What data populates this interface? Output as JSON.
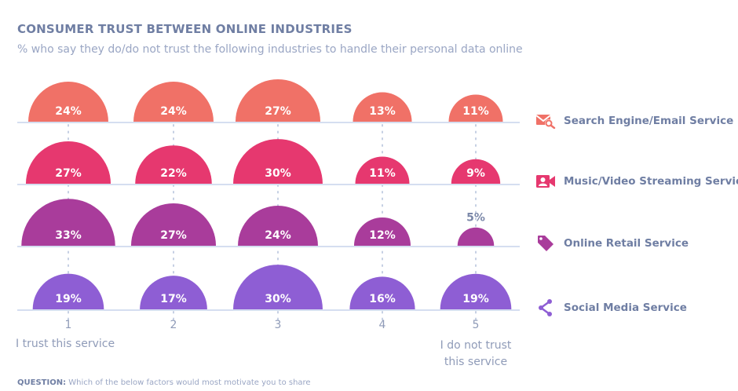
{
  "header": {
    "title": "CONSUMER TRUST BETWEEN ONLINE INDUSTRIES",
    "subtitle": "% who say they do/do not trust the following industries to handle their personal data online"
  },
  "footer": {
    "question_label": "QUESTION:",
    "question_text": "Which of the below factors would most motivate you to share"
  },
  "chart_data": {
    "type": "semicircle-bubble",
    "title": "CONSUMER TRUST BETWEEN ONLINE INDUSTRIES",
    "subtitle": "% who say they do/do not trust the following industries to handle their personal data online",
    "categories": [
      "1",
      "2",
      "3",
      "4",
      "5"
    ],
    "x_end_labels": {
      "left": "I trust this service",
      "right": "I do not trust this service"
    },
    "unit": "%",
    "legend_position": "right",
    "series": [
      {
        "name": "Search Engine/Email Service",
        "color": "#f07167",
        "icon": "envelope-search-icon",
        "values": [
          24,
          24,
          27,
          13,
          11
        ]
      },
      {
        "name": "Music/Video Streaming Service",
        "color": "#e6386f",
        "icon": "video-camera-icon",
        "values": [
          27,
          22,
          30,
          11,
          9
        ]
      },
      {
        "name": "Online Retail Service",
        "color": "#a93c9b",
        "icon": "price-tag-icon",
        "values": [
          33,
          27,
          24,
          12,
          5
        ]
      },
      {
        "name": "Social Media Service",
        "color": "#8e5ed4",
        "icon": "share-icon",
        "values": [
          19,
          17,
          30,
          16,
          19
        ]
      }
    ]
  },
  "colors": {
    "title": "#6f7ea3",
    "subtitle": "#9aa6c4",
    "baseline": "#d5def0",
    "dotted_guide": "#c5cfe3",
    "outside_label": "#7a87a8"
  }
}
